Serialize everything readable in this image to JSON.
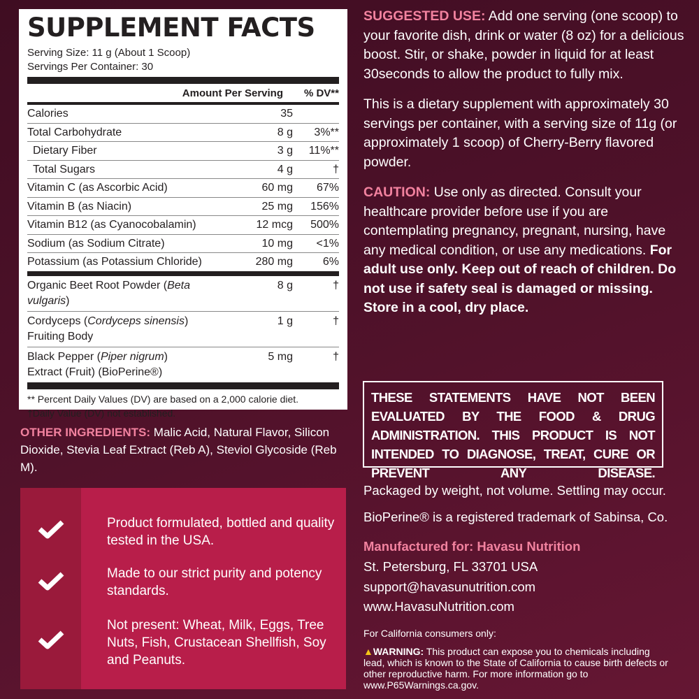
{
  "facts": {
    "title": "SUPPLEMENT FACTS",
    "serving_size": "Serving Size: 11 g (About 1 Scoop)",
    "servings_per_container": "Servings Per Container: 30",
    "col_amount": "Amount Per Serving",
    "col_dv": "% DV**",
    "rows": [
      {
        "name": "Calories",
        "amount": "35",
        "dv": ""
      },
      {
        "name": "Total Carbohydrate",
        "amount": "8 g",
        "dv": "3%**"
      },
      {
        "name": "Dietary Fiber",
        "amount": "3 g",
        "dv": "11%**"
      },
      {
        "name": "Total Sugars",
        "amount": "4 g",
        "dv": "†"
      },
      {
        "name": "Vitamin C (as Ascorbic Acid)",
        "amount": "60 mg",
        "dv": "67%"
      },
      {
        "name": "Vitamin B (as Niacin)",
        "amount": "25 mg",
        "dv": "156%"
      },
      {
        "name": "Vitamin B12 (as Cyanocobalamin)",
        "amount": "12 mcg",
        "dv": "500%"
      },
      {
        "name": "Sodium (as Sodium Citrate)",
        "amount": "10 mg",
        "dv": "<1%"
      },
      {
        "name": "Potassium (as Potassium Chloride)",
        "amount": "280 mg",
        "dv": "6%"
      }
    ],
    "other_rows": [
      {
        "name": "Organic Beet Root Powder (",
        "latin": "Beta vulgaris",
        "name_end": ")",
        "amount": "8 g",
        "dv": "†"
      },
      {
        "name": "Cordyceps (",
        "latin": "Cordyceps sinensis",
        "name_end": ")",
        "line2": "Fruiting Body",
        "amount": "1 g",
        "dv": "†"
      },
      {
        "name": "Black Pepper (",
        "latin": "Piper nigrum",
        "name_end": ")",
        "line2": "Extract (Fruit) (BioPerine®)",
        "amount": "5 mg",
        "dv": "†"
      }
    ],
    "footnote1": "** Percent Daily Values (DV) are based on a 2,000 calorie diet.",
    "footnote2": "†Daily Value (DV) not established."
  },
  "other_ingredients": {
    "label": "OTHER INGREDIENTS:",
    "text": " Malic Acid, Natural Flavor, Silicon Dioxide, Stevia Leaf Extract (Reb A), Steviol Glycoside (Reb M)."
  },
  "badges": [
    "Product formulated, bottled and quality tested in the USA.",
    "Made to our strict purity and potency standards.",
    "Not present: Wheat, Milk, Eggs, Tree Nuts, Fish, Crustacean Shellfish, Soy and Peanuts."
  ],
  "suggested_use": {
    "label": "SUGGESTED USE:",
    "text": " Add one serving (one scoop) to your favorite dish, drink or water (8 oz) for a delicious boost. Stir, or shake, powder in liquid for at least 30seconds to allow the product to fully mix."
  },
  "dietary_note": "This is a dietary supplement with approximately 30 servings per container, with a serving size of 11g (or approximately 1 scoop) of Cherry-Berry flavored powder.",
  "caution": {
    "label": "CAUTION:",
    "text": " Use only as directed. Consult your healthcare provider before use if you are contemplating pregnancy, pregnant, nursing, have any medical condition, or use any medications. ",
    "bold": "For adult use only. Keep out of reach of children. Do not use if safety seal is damaged or missing. Store in a cool, dry place."
  },
  "disclaimer": "THESE STATEMENTS HAVE NOT BEEN EVALUATED BY THE FOOD & DRUG ADMINISTRATION. THIS PRODUCT IS NOT INTENDED TO DIAGNOSE, TREAT, CURE OR PREVENT ANY DISEASE.",
  "packaged": "Packaged by weight, not volume. Settling may occur.",
  "trademark": "BioPerine® is a registered trademark of Sabinsa, Co.",
  "manufacturer": {
    "label": "Manufactured for: Havasu Nutrition",
    "address": "St. Petersburg, FL 33701 USA",
    "email": "support@havasunutrition.com",
    "website": "www.HavasuNutrition.com"
  },
  "california": {
    "intro": "For California consumers only:",
    "label": "WARNING:",
    "text": " This product can expose you to chemicals including lead, which is known to the State of California to cause birth defects  or other reproductive harm. For more information go to www.P65Warnings.ca.gov."
  },
  "colors": {
    "accent_pink": "#f2829f",
    "panel": "#b81e4a",
    "panel_dark": "#9a1a3b",
    "background": "#4e1129",
    "warning_icon": "#f5c518"
  }
}
